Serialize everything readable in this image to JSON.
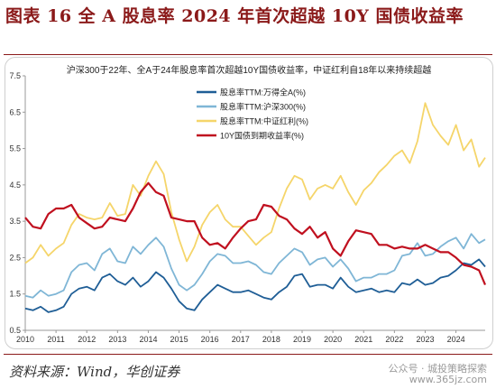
{
  "figure": {
    "title": "图表 16 全 A 股息率 2024 年首次超越 10Y 国债收益率",
    "source": "资料来源：Wind，华创证券",
    "watermark": "公众号 · 城投策略探索",
    "watermark_url": "www.365jz.com"
  },
  "chart_data": {
    "type": "line",
    "title": "沪深300于22年、全A于24年股息率首次超越10Y国债收益率，中证红利自18年以来持续超越",
    "xlabel": "",
    "ylabel": "",
    "xlim": [
      2010,
      2024.95
    ],
    "ylim": [
      0.5,
      7.5
    ],
    "yticks": [
      "0.5",
      "1.5",
      "2.5",
      "3.5",
      "4.5",
      "5.5",
      "6.5",
      "7.5"
    ],
    "xticks": [
      "2010",
      "2011",
      "2012",
      "2013",
      "2014",
      "2015",
      "2016",
      "2017",
      "2018",
      "2019",
      "2020",
      "2021",
      "2022",
      "2023",
      "2024"
    ],
    "grid": false,
    "legend_position": "top-left",
    "series": [
      {
        "name": "股息率TTM:万得全A(%)",
        "color": "#1f5e96",
        "x": [
          2010.0,
          2010.25,
          2010.5,
          2010.75,
          2011.0,
          2011.25,
          2011.5,
          2011.75,
          2012.0,
          2012.25,
          2012.5,
          2012.75,
          2013.0,
          2013.25,
          2013.5,
          2013.75,
          2014.0,
          2014.25,
          2014.5,
          2014.75,
          2015.0,
          2015.25,
          2015.5,
          2015.75,
          2016.0,
          2016.25,
          2016.5,
          2016.75,
          2017.0,
          2017.25,
          2017.5,
          2017.75,
          2018.0,
          2018.25,
          2018.5,
          2018.75,
          2019.0,
          2019.25,
          2019.5,
          2019.75,
          2020.0,
          2020.25,
          2020.5,
          2020.75,
          2021.0,
          2021.25,
          2021.5,
          2021.75,
          2022.0,
          2022.25,
          2022.5,
          2022.75,
          2023.0,
          2023.25,
          2023.5,
          2023.75,
          2024.0,
          2024.25,
          2024.5,
          2024.75,
          2024.95
        ],
        "values": [
          1.1,
          1.05,
          1.15,
          1.0,
          1.05,
          1.15,
          1.5,
          1.65,
          1.7,
          1.6,
          1.95,
          2.05,
          1.85,
          1.75,
          1.95,
          1.7,
          1.85,
          2.1,
          1.95,
          1.65,
          1.3,
          1.1,
          1.05,
          1.35,
          1.55,
          1.75,
          1.65,
          1.55,
          1.55,
          1.6,
          1.5,
          1.4,
          1.35,
          1.55,
          1.7,
          2.0,
          2.05,
          1.7,
          1.75,
          1.75,
          1.65,
          1.95,
          1.7,
          1.55,
          1.6,
          1.65,
          1.55,
          1.6,
          1.55,
          1.8,
          1.75,
          1.9,
          1.75,
          1.8,
          1.95,
          2.0,
          2.15,
          2.35,
          2.3,
          2.45,
          2.25
        ]
      },
      {
        "name": "股息率TTM:沪深300(%)",
        "color": "#7fb6d6",
        "x": [
          2010.0,
          2010.25,
          2010.5,
          2010.75,
          2011.0,
          2011.25,
          2011.5,
          2011.75,
          2012.0,
          2012.25,
          2012.5,
          2012.75,
          2013.0,
          2013.25,
          2013.5,
          2013.75,
          2014.0,
          2014.25,
          2014.5,
          2014.75,
          2015.0,
          2015.25,
          2015.5,
          2015.75,
          2016.0,
          2016.25,
          2016.5,
          2016.75,
          2017.0,
          2017.25,
          2017.5,
          2017.75,
          2018.0,
          2018.25,
          2018.5,
          2018.75,
          2019.0,
          2019.25,
          2019.5,
          2019.75,
          2020.0,
          2020.25,
          2020.5,
          2020.75,
          2021.0,
          2021.25,
          2021.5,
          2021.75,
          2022.0,
          2022.25,
          2022.5,
          2022.75,
          2023.0,
          2023.25,
          2023.5,
          2023.75,
          2024.0,
          2024.25,
          2024.5,
          2024.75,
          2024.95
        ],
        "values": [
          1.45,
          1.4,
          1.6,
          1.45,
          1.5,
          1.6,
          2.1,
          2.3,
          2.35,
          2.15,
          2.6,
          2.75,
          2.4,
          2.35,
          2.8,
          2.6,
          2.85,
          3.05,
          2.8,
          2.2,
          1.75,
          1.6,
          1.75,
          2.05,
          2.4,
          2.6,
          2.55,
          2.35,
          2.35,
          2.4,
          2.3,
          2.1,
          2.05,
          2.35,
          2.55,
          2.75,
          2.65,
          2.3,
          2.45,
          2.5,
          2.25,
          2.45,
          2.2,
          1.85,
          1.95,
          1.95,
          2.05,
          2.05,
          2.15,
          2.55,
          2.6,
          2.9,
          2.55,
          2.6,
          2.8,
          2.95,
          3.05,
          2.75,
          3.15,
          2.9,
          3.0
        ]
      },
      {
        "name": "股息率TTM:中证红利(%)",
        "color": "#f5d56a",
        "x": [
          2010.0,
          2010.25,
          2010.5,
          2010.75,
          2011.0,
          2011.25,
          2011.5,
          2011.75,
          2012.0,
          2012.25,
          2012.5,
          2012.75,
          2013.0,
          2013.25,
          2013.5,
          2013.75,
          2014.0,
          2014.25,
          2014.5,
          2014.75,
          2015.0,
          2015.25,
          2015.5,
          2015.75,
          2016.0,
          2016.25,
          2016.5,
          2016.75,
          2017.0,
          2017.25,
          2017.5,
          2017.75,
          2018.0,
          2018.25,
          2018.5,
          2018.75,
          2019.0,
          2019.25,
          2019.5,
          2019.75,
          2020.0,
          2020.25,
          2020.5,
          2020.75,
          2021.0,
          2021.25,
          2021.5,
          2021.75,
          2022.0,
          2022.25,
          2022.5,
          2022.75,
          2023.0,
          2023.25,
          2023.5,
          2023.75,
          2024.0,
          2024.25,
          2024.5,
          2024.75,
          2024.95
        ],
        "values": [
          2.35,
          2.5,
          2.85,
          2.55,
          2.75,
          2.9,
          3.4,
          3.7,
          3.6,
          3.55,
          3.6,
          4.0,
          3.65,
          3.7,
          4.5,
          4.2,
          4.75,
          5.15,
          4.8,
          3.75,
          3.0,
          2.4,
          2.8,
          3.4,
          3.75,
          3.95,
          3.55,
          3.35,
          3.35,
          3.1,
          2.85,
          3.05,
          3.2,
          3.85,
          4.4,
          4.75,
          4.65,
          4.1,
          4.4,
          4.5,
          4.4,
          4.75,
          4.3,
          3.95,
          4.35,
          4.55,
          4.85,
          5.05,
          5.3,
          5.45,
          5.1,
          5.7,
          6.75,
          6.15,
          5.85,
          5.6,
          6.15,
          5.45,
          5.75,
          5.0,
          5.25
        ]
      },
      {
        "name": "10Y国债到期收益率(%)",
        "color": "#c0101f",
        "x": [
          2010.0,
          2010.25,
          2010.5,
          2010.75,
          2011.0,
          2011.25,
          2011.5,
          2011.75,
          2012.0,
          2012.25,
          2012.5,
          2012.75,
          2013.0,
          2013.25,
          2013.5,
          2013.75,
          2014.0,
          2014.25,
          2014.5,
          2014.75,
          2015.0,
          2015.25,
          2015.5,
          2015.75,
          2016.0,
          2016.25,
          2016.5,
          2016.75,
          2017.0,
          2017.25,
          2017.5,
          2017.75,
          2018.0,
          2018.25,
          2018.5,
          2018.75,
          2019.0,
          2019.25,
          2019.5,
          2019.75,
          2020.0,
          2020.25,
          2020.5,
          2020.75,
          2021.0,
          2021.25,
          2021.5,
          2021.75,
          2022.0,
          2022.25,
          2022.5,
          2022.75,
          2023.0,
          2023.25,
          2023.5,
          2023.75,
          2024.0,
          2024.25,
          2024.5,
          2024.75,
          2024.95
        ],
        "values": [
          3.6,
          3.35,
          3.3,
          3.7,
          3.85,
          3.85,
          3.95,
          3.6,
          3.45,
          3.3,
          3.35,
          3.6,
          3.55,
          3.5,
          3.85,
          4.3,
          4.55,
          4.3,
          4.2,
          3.6,
          3.55,
          3.5,
          3.5,
          3.05,
          2.85,
          2.9,
          2.75,
          3.05,
          3.3,
          3.5,
          3.55,
          3.95,
          3.9,
          3.65,
          3.55,
          3.3,
          3.15,
          3.35,
          3.05,
          3.2,
          2.75,
          2.55,
          2.95,
          3.25,
          3.2,
          3.15,
          2.85,
          2.85,
          2.75,
          2.8,
          2.75,
          2.75,
          2.85,
          2.75,
          2.65,
          2.65,
          2.5,
          2.3,
          2.25,
          2.15,
          1.75
        ]
      }
    ]
  }
}
